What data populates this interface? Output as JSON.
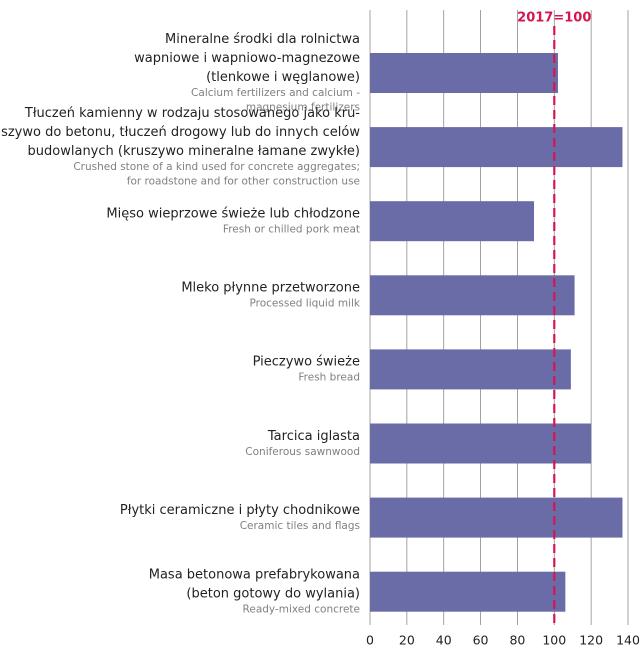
{
  "chart_data": {
    "type": "bar",
    "orientation": "horizontal",
    "categories": [
      [
        "Mineralne środki dla rolnictwa",
        "wapniowe i wapniowo-magnezowe",
        "(tlenkowe i węglanowe)"
      ],
      [
        "Tłuczeń kamienny w rodzaju stosowanego jako kru-",
        "szywo do betonu, tłuczeń drogowy lub do innych celów",
        "budowlanych (kruszywo mineralne łamane zwykłe)"
      ],
      [
        "Mięso wieprzowe świeże lub chłodzone"
      ],
      [
        "Mleko płynne przetworzone"
      ],
      [
        "Pieczywo świeże"
      ],
      [
        "Tarcica iglasta"
      ],
      [
        "Płytki ceramiczne i płyty chodnikowe"
      ],
      [
        "Masa betonowa prefabrykowana",
        "(beton gotowy do wylania)"
      ]
    ],
    "category_translations": [
      [
        "Calcium fertilizers and calcium -",
        "magnesium fertilizers"
      ],
      [
        "Crushed stone of a kind used for concrete aggregates;",
        "for roadstone and for other construction use"
      ],
      [
        "Fresh or chilled pork meat"
      ],
      [
        "Processed liquid milk"
      ],
      [
        "Fresh bread"
      ],
      [
        "Coniferous sawnwood"
      ],
      [
        "Ceramic tiles and flags"
      ],
      [
        "Ready-mixed concrete"
      ]
    ],
    "values": [
      102,
      137,
      89,
      111,
      109,
      120,
      137,
      106
    ],
    "color": "#6a6ca8",
    "xlim": [
      0,
      140
    ],
    "xticks": [
      0,
      20,
      40,
      60,
      80,
      100,
      120,
      140
    ],
    "grid": true,
    "reference_line": {
      "value": 100,
      "label": "2017=100",
      "color": "#d6174f"
    }
  }
}
